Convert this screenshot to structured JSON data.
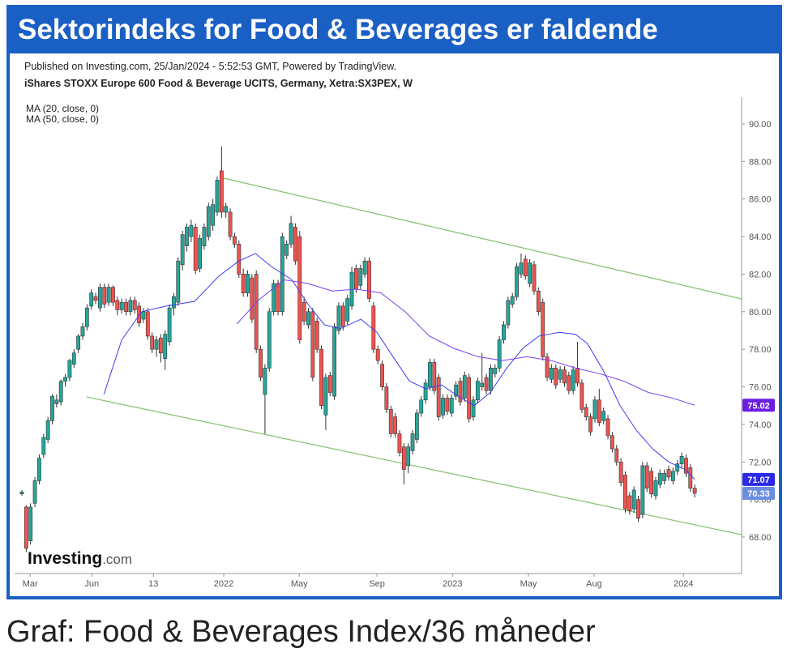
{
  "chart_data": {
    "type": "candlestick",
    "title": "Sektorindeks for Food & Beverages er faldende",
    "subtitle": "Published on Investing.com, 25/Jan/2024 - 5:52:53 GMT, Powered by TradingView.",
    "instrument": "iShares STOXX Europe 600 Food & Beverage UCITS, Germany, Xetra:SX3PEX, W",
    "logo": [
      "Investing",
      ".com"
    ],
    "caption": "Graf: Food & Beverages Index/36 måneder",
    "up_color": "#26a69a",
    "down_color": "#ef5350",
    "ylim": [
      66.06,
      91.42
    ],
    "yticks": [
      {
        "value": 68,
        "label": "68.00"
      },
      {
        "value": 70,
        "label": "70.00"
      },
      {
        "value": 72,
        "label": "72.00"
      },
      {
        "value": 74,
        "label": "74.00"
      },
      {
        "value": 76,
        "label": "76.00"
      },
      {
        "value": 78,
        "label": "78.00"
      },
      {
        "value": 80,
        "label": "80.00"
      },
      {
        "value": 82,
        "label": "82.00"
      },
      {
        "value": 84,
        "label": "84.00"
      },
      {
        "value": 86,
        "label": "86.00"
      },
      {
        "value": 88,
        "label": "88.00"
      },
      {
        "value": 90,
        "label": "90.00"
      }
    ],
    "xlim": [
      -1.68,
      165.8
    ],
    "xticks": [
      {
        "value": 1.9,
        "label": "Mar"
      },
      {
        "value": 16.1,
        "label": "Jun"
      },
      {
        "value": 30.3,
        "label": "13"
      },
      {
        "value": 46.5,
        "label": "2022"
      },
      {
        "value": 63.9,
        "label": "May"
      },
      {
        "value": 81.8,
        "label": "Sep"
      },
      {
        "value": 99.2,
        "label": "2023"
      },
      {
        "value": 116.7,
        "label": "May"
      },
      {
        "value": 131.8,
        "label": "Aug"
      },
      {
        "value": 152.4,
        "label": "2024"
      }
    ],
    "ohlc": [
      [
        70.3,
        70.5,
        70.2,
        70.4
      ],
      [
        69.6,
        69.7,
        67.2,
        67.4
      ],
      [
        67.8,
        69.8,
        67.6,
        69.6
      ],
      [
        69.8,
        71.2,
        69.6,
        71.0
      ],
      [
        71.0,
        72.4,
        70.8,
        72.2
      ],
      [
        72.4,
        73.5,
        72.2,
        73.3
      ],
      [
        73.2,
        74.4,
        73.0,
        74.2
      ],
      [
        74.2,
        75.6,
        74.0,
        75.5
      ],
      [
        75.1,
        75.6,
        74.9,
        75.3
      ],
      [
        75.2,
        76.4,
        75.0,
        76.3
      ],
      [
        76.3,
        76.7,
        76.0,
        76.5
      ],
      [
        76.5,
        77.5,
        76.3,
        77.4
      ],
      [
        77.2,
        78.0,
        77.0,
        77.8
      ],
      [
        78.0,
        78.8,
        77.8,
        78.7
      ],
      [
        78.7,
        79.4,
        78.5,
        79.2
      ],
      [
        79.2,
        80.4,
        79.0,
        80.2
      ],
      [
        80.3,
        81.2,
        80.1,
        81.0
      ],
      [
        80.8,
        81.0,
        80.4,
        80.6
      ],
      [
        80.2,
        81.5,
        80.0,
        81.3
      ],
      [
        81.3,
        81.5,
        80.2,
        80.4
      ],
      [
        80.5,
        81.5,
        80.3,
        81.3
      ],
      [
        81.3,
        81.4,
        80.3,
        80.5
      ],
      [
        80.6,
        80.8,
        79.8,
        80.1
      ],
      [
        80.1,
        80.7,
        79.9,
        80.5
      ],
      [
        80.5,
        80.7,
        79.8,
        80.0
      ],
      [
        80.0,
        80.8,
        79.8,
        80.6
      ],
      [
        80.6,
        80.8,
        79.9,
        80.1
      ],
      [
        80.3,
        80.5,
        79.2,
        79.4
      ],
      [
        79.6,
        80.2,
        79.4,
        80.0
      ],
      [
        80.0,
        80.2,
        78.5,
        78.7
      ],
      [
        78.7,
        78.9,
        77.8,
        78.0
      ],
      [
        78.0,
        78.7,
        77.6,
        78.5
      ],
      [
        78.6,
        78.8,
        77.3,
        77.8
      ],
      [
        77.5,
        79.0,
        76.9,
        78.8
      ],
      [
        78.4,
        80.4,
        78.2,
        80.2
      ],
      [
        80.2,
        81.0,
        79.8,
        80.8
      ],
      [
        80.5,
        82.9,
        80.3,
        82.7
      ],
      [
        82.5,
        84.3,
        82.2,
        84.1
      ],
      [
        83.5,
        84.7,
        83.2,
        84.5
      ],
      [
        84.0,
        84.9,
        83.7,
        84.6
      ],
      [
        84.5,
        84.7,
        82.0,
        82.2
      ],
      [
        82.3,
        84.1,
        82.1,
        83.9
      ],
      [
        83.5,
        84.7,
        83.3,
        84.5
      ],
      [
        84.0,
        85.8,
        83.8,
        85.6
      ],
      [
        84.6,
        86.0,
        84.3,
        85.7
      ],
      [
        85.3,
        87.2,
        85.1,
        87.0
      ],
      [
        87.5,
        88.8,
        85.0,
        85.3
      ],
      [
        85.3,
        85.8,
        85.0,
        85.6
      ],
      [
        85.3,
        85.5,
        83.8,
        84.0
      ],
      [
        84.0,
        84.2,
        83.4,
        83.6
      ],
      [
        83.6,
        83.8,
        81.8,
        82.0
      ],
      [
        82.0,
        82.3,
        80.8,
        81.0
      ],
      [
        81.0,
        82.2,
        80.8,
        82.0
      ],
      [
        81.8,
        82.0,
        79.4,
        79.6
      ],
      [
        82.0,
        82.2,
        77.8,
        78.0
      ],
      [
        78.0,
        78.2,
        76.3,
        76.5
      ],
      [
        75.6,
        77.2,
        73.5,
        77.0
      ],
      [
        77.0,
        80.2,
        76.8,
        80.0
      ],
      [
        80.0,
        81.7,
        79.8,
        81.5
      ],
      [
        81.5,
        81.7,
        79.8,
        80.0
      ],
      [
        80.0,
        84.2,
        79.8,
        84.0
      ],
      [
        83.0,
        83.8,
        82.8,
        83.6
      ],
      [
        83.6,
        85.1,
        83.4,
        84.7
      ],
      [
        84.5,
        84.7,
        82.5,
        82.7
      ],
      [
        84.0,
        84.3,
        78.3,
        78.5
      ],
      [
        80.5,
        80.8,
        79.3,
        79.5
      ],
      [
        79.3,
        80.2,
        79.1,
        80.0
      ],
      [
        80.0,
        80.2,
        76.3,
        76.5
      ],
      [
        79.5,
        79.7,
        77.8,
        78.0
      ],
      [
        78.0,
        78.2,
        74.8,
        75.0
      ],
      [
        74.5,
        76.7,
        73.7,
        76.5
      ],
      [
        76.6,
        76.8,
        75.5,
        75.7
      ],
      [
        75.5,
        79.4,
        75.3,
        79.2
      ],
      [
        79.0,
        80.5,
        78.8,
        80.3
      ],
      [
        80.3,
        80.5,
        79.0,
        79.2
      ],
      [
        79.5,
        80.9,
        79.3,
        80.7
      ],
      [
        80.3,
        82.4,
        80.1,
        82.1
      ],
      [
        82.3,
        82.5,
        81.0,
        81.2
      ],
      [
        81.4,
        82.5,
        81.2,
        82.3
      ],
      [
        82.0,
        82.9,
        81.8,
        82.7
      ],
      [
        82.7,
        82.9,
        80.5,
        80.7
      ],
      [
        80.3,
        80.5,
        77.8,
        78.0
      ],
      [
        78.0,
        78.2,
        77.2,
        77.4
      ],
      [
        77.2,
        77.4,
        75.8,
        76.0
      ],
      [
        76.0,
        76.2,
        74.6,
        74.8
      ],
      [
        74.8,
        75.0,
        73.3,
        73.5
      ],
      [
        74.4,
        74.6,
        73.3,
        73.5
      ],
      [
        73.5,
        73.7,
        72.3,
        72.5
      ],
      [
        72.8,
        73.0,
        70.8,
        71.6
      ],
      [
        71.8,
        73.0,
        71.4,
        72.8
      ],
      [
        72.6,
        73.7,
        72.4,
        73.5
      ],
      [
        73.2,
        74.8,
        73.0,
        74.6
      ],
      [
        74.6,
        75.5,
        74.4,
        75.3
      ],
      [
        75.3,
        76.4,
        75.1,
        76.2
      ],
      [
        76.0,
        77.5,
        75.8,
        77.3
      ],
      [
        77.3,
        77.5,
        75.6,
        75.8
      ],
      [
        76.5,
        76.7,
        74.2,
        74.4
      ],
      [
        74.5,
        75.6,
        74.3,
        75.4
      ],
      [
        75.4,
        75.6,
        74.5,
        74.7
      ],
      [
        74.6,
        75.6,
        74.4,
        75.4
      ],
      [
        75.5,
        76.3,
        75.3,
        76.1
      ],
      [
        76.3,
        76.5,
        75.0,
        75.2
      ],
      [
        75.4,
        76.8,
        75.2,
        76.6
      ],
      [
        76.5,
        76.7,
        74.1,
        74.3
      ],
      [
        74.4,
        75.5,
        74.2,
        75.3
      ],
      [
        75.3,
        76.5,
        75.1,
        76.3
      ],
      [
        76.0,
        77.8,
        75.8,
        76.2
      ],
      [
        76.5,
        76.7,
        75.6,
        75.8
      ],
      [
        75.8,
        77.2,
        75.6,
        77.0
      ],
      [
        76.7,
        77.2,
        76.5,
        77.0
      ],
      [
        77.0,
        78.7,
        76.8,
        78.5
      ],
      [
        78.5,
        79.5,
        78.3,
        79.3
      ],
      [
        79.3,
        80.8,
        79.1,
        80.6
      ],
      [
        80.4,
        81.0,
        80.2,
        80.8
      ],
      [
        80.8,
        82.6,
        80.6,
        82.4
      ],
      [
        82.0,
        83.1,
        81.8,
        82.6
      ],
      [
        82.8,
        83.0,
        81.7,
        81.9
      ],
      [
        81.5,
        82.8,
        81.3,
        82.6
      ],
      [
        82.5,
        82.7,
        80.9,
        81.1
      ],
      [
        81.1,
        81.3,
        79.8,
        80.0
      ],
      [
        80.5,
        80.7,
        77.4,
        77.6
      ],
      [
        77.6,
        77.8,
        76.3,
        76.5
      ],
      [
        76.4,
        77.2,
        76.2,
        77.0
      ],
      [
        77.0,
        77.2,
        75.9,
        76.1
      ],
      [
        76.4,
        77.1,
        76.2,
        76.9
      ],
      [
        76.9,
        77.1,
        76.0,
        76.2
      ],
      [
        76.6,
        76.8,
        75.6,
        75.8
      ],
      [
        75.8,
        77.1,
        75.6,
        76.9
      ],
      [
        77.0,
        78.4,
        76.0,
        76.2
      ],
      [
        76.2,
        76.4,
        74.6,
        74.8
      ],
      [
        74.9,
        75.1,
        74.2,
        74.4
      ],
      [
        74.4,
        74.6,
        73.4,
        73.6
      ],
      [
        74.3,
        75.5,
        74.1,
        75.3
      ],
      [
        75.3,
        75.9,
        73.9,
        74.1
      ],
      [
        74.2,
        74.9,
        74.0,
        74.7
      ],
      [
        74.3,
        74.5,
        73.2,
        73.4
      ],
      [
        73.4,
        73.6,
        72.5,
        72.7
      ],
      [
        72.7,
        72.9,
        71.8,
        72.0
      ],
      [
        72.0,
        72.2,
        70.7,
        70.9
      ],
      [
        71.3,
        71.5,
        69.3,
        69.5
      ],
      [
        70.2,
        70.4,
        69.2,
        69.4
      ],
      [
        69.5,
        70.7,
        69.3,
        70.5
      ],
      [
        70.0,
        70.2,
        68.8,
        69.0
      ],
      [
        69.2,
        72.0,
        69.0,
        71.8
      ],
      [
        71.8,
        72.0,
        70.4,
        70.6
      ],
      [
        71.5,
        71.7,
        70.1,
        70.3
      ],
      [
        70.2,
        71.2,
        70.0,
        71.0
      ],
      [
        70.8,
        71.6,
        70.6,
        71.4
      ],
      [
        71.0,
        71.6,
        70.8,
        71.4
      ],
      [
        71.6,
        71.8,
        71.0,
        71.2
      ],
      [
        71.0,
        71.7,
        70.8,
        71.5
      ],
      [
        71.5,
        72.1,
        71.3,
        71.9
      ],
      [
        71.9,
        72.5,
        71.7,
        72.3
      ],
      [
        72.2,
        72.4,
        71.2,
        71.4
      ],
      [
        71.7,
        71.9,
        70.4,
        70.6
      ],
      [
        70.6,
        70.8,
        70.1,
        70.33
      ]
    ],
    "series": [
      {
        "name": "MA (20, close, 0)",
        "color": "#3d3df0",
        "x": [
          18.9,
          23,
          27.6,
          33.2,
          39.8,
          45.4,
          50,
          53.8,
          57.5,
          62.2,
          65.9,
          69.7,
          73.4,
          78.1,
          81.8,
          85.5,
          89.3,
          93,
          96.7,
          100.5,
          104.2,
          107.9,
          111.7,
          115.4,
          119.1,
          123.8,
          127.5,
          130.3,
          134.1,
          137.8,
          141.5,
          145.3,
          149,
          152.8,
          155
        ],
        "values": [
          75.6,
          78.5,
          80.0,
          80.3,
          80.55,
          81.9,
          82.7,
          83.1,
          82.4,
          81.7,
          80.4,
          79.3,
          79.1,
          79.6,
          78.9,
          77.6,
          76.3,
          75.9,
          76.1,
          75.5,
          75.0,
          75.7,
          77.0,
          78.05,
          78.7,
          78.9,
          78.8,
          78.3,
          76.8,
          75.0,
          73.7,
          72.7,
          72.0,
          71.6,
          71.07
        ]
      },
      {
        "name": "MA (50, close, 0)",
        "color": "#7a3ff0",
        "x": [
          49.5,
          54.7,
          60.3,
          65.9,
          71.5,
          77.1,
          82.7,
          88.3,
          93.9,
          99.5,
          105.1,
          110.7,
          116.3,
          121.9,
          127.5,
          133.1,
          138.7,
          144.3,
          149.9,
          155
        ],
        "values": [
          79.35,
          80.65,
          81.7,
          81.5,
          81.1,
          81.2,
          81.0,
          80.0,
          78.7,
          78.05,
          77.6,
          77.4,
          77.6,
          77.4,
          77.0,
          76.7,
          76.3,
          75.7,
          75.4,
          75.02
        ]
      }
    ],
    "trend_lines": [
      {
        "color": "#8cc47a",
        "x": [
          46.5,
          165.8
        ],
        "values": [
          87.11,
          80.68
        ]
      },
      {
        "color": "#8cc47a",
        "x": [
          14.9,
          165.8
        ],
        "values": [
          75.46,
          68.13
        ]
      }
    ],
    "price_tags": [
      {
        "value": 75.02,
        "color": "#6a1fe0"
      },
      {
        "value": 71.07,
        "color": "#2a2ae8"
      },
      {
        "value": 70.33,
        "color": "#6b8fe0"
      }
    ]
  }
}
